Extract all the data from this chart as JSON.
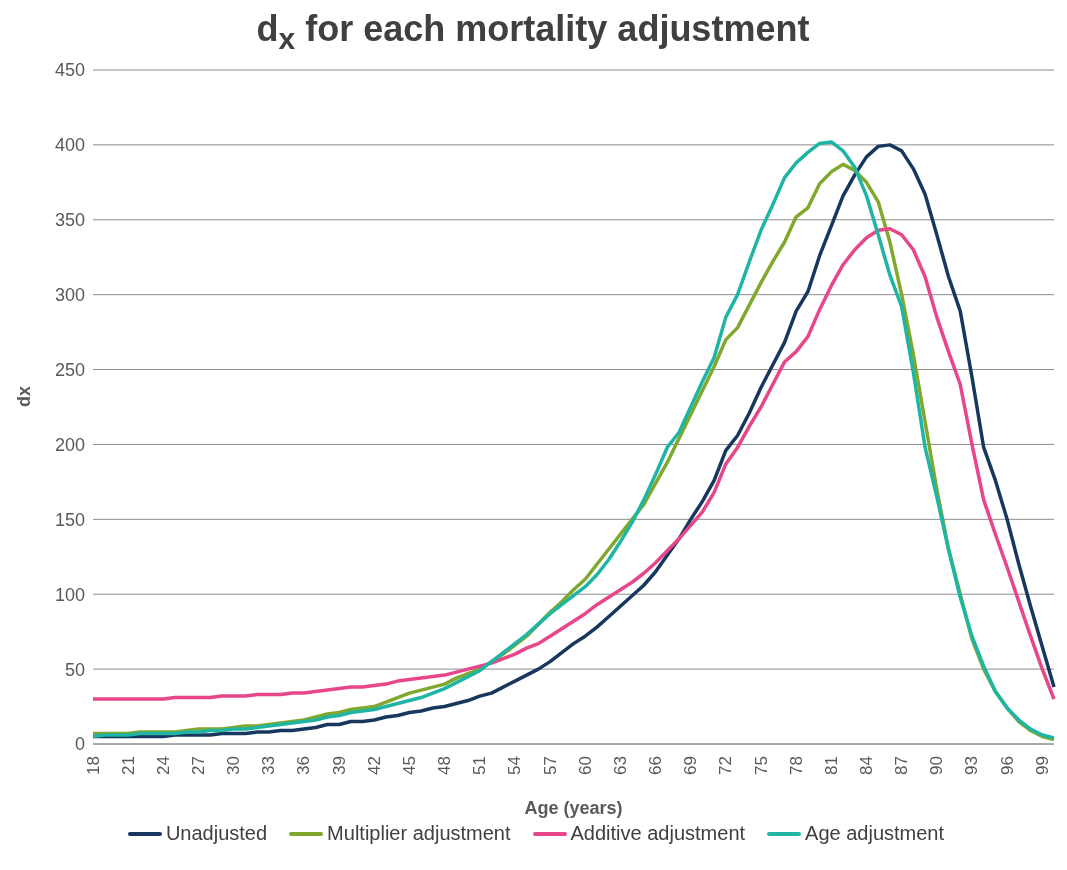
{
  "chart_data": {
    "type": "line",
    "title": "d$_{x}$ for each mortality adjustment",
    "xlabel": "Age (years)",
    "ylabel": "dx",
    "categories": [
      "18",
      null,
      null,
      "21",
      null,
      null,
      "24",
      null,
      null,
      "27",
      null,
      null,
      "30",
      null,
      null,
      "33",
      null,
      null,
      "36",
      null,
      null,
      "39",
      null,
      null,
      "42",
      null,
      null,
      "45",
      null,
      null,
      "48",
      null,
      null,
      "51",
      null,
      null,
      "54",
      null,
      null,
      "57",
      null,
      null,
      "60",
      null,
      null,
      "63",
      null,
      null,
      "66",
      null,
      null,
      "69",
      null,
      null,
      "72",
      null,
      null,
      "75",
      null,
      null,
      "78",
      null,
      null,
      "81",
      null,
      null,
      "84",
      null,
      null,
      "87",
      null,
      null,
      "90",
      null,
      null,
      "93",
      null,
      null,
      "96",
      null,
      null,
      "99",
      null
    ],
    "series": [
      {
        "name": "Unadjusted",
        "color": "#17375e",
        "values": [
          5,
          5,
          5,
          5,
          5,
          5,
          5,
          6,
          6,
          6,
          6,
          7,
          7,
          7,
          8,
          8,
          9,
          9,
          10,
          11,
          13,
          13,
          15,
          15,
          16,
          18,
          19,
          21,
          22,
          24,
          25,
          27,
          29,
          32,
          34,
          38,
          42,
          46,
          50,
          55,
          61,
          67,
          72,
          78,
          85,
          92,
          99,
          106,
          115,
          126,
          137,
          150,
          162,
          176,
          196,
          206,
          221,
          238,
          253,
          268,
          289,
          302,
          326,
          346,
          366,
          380,
          392,
          399,
          400,
          396,
          384,
          367,
          340,
          312,
          289,
          245,
          198,
          176,
          150,
          120,
          92,
          65,
          38
        ]
      },
      {
        "name": "Multiplier adjustment",
        "color": "#7fa82c",
        "values": [
          7,
          7,
          7,
          7,
          8,
          8,
          8,
          8,
          9,
          10,
          10,
          10,
          11,
          12,
          12,
          13,
          14,
          15,
          16,
          18,
          20,
          21,
          23,
          24,
          25,
          28,
          31,
          34,
          36,
          38,
          40,
          44,
          47,
          50,
          55,
          60,
          66,
          72,
          80,
          88,
          95,
          103,
          110,
          120,
          130,
          140,
          150,
          160,
          174,
          188,
          204,
          220,
          236,
          252,
          270,
          278,
          293,
          308,
          322,
          335,
          352,
          358,
          374,
          382,
          387,
          383,
          375,
          362,
          335,
          300,
          260,
          215,
          170,
          130,
          100,
          70,
          50,
          35,
          24,
          15,
          9,
          5,
          3
        ]
      },
      {
        "name": "Additive adjustment",
        "color": "#e8468a",
        "values": [
          30,
          30,
          30,
          30,
          30,
          30,
          30,
          31,
          31,
          31,
          31,
          32,
          32,
          32,
          33,
          33,
          33,
          34,
          34,
          35,
          36,
          37,
          38,
          38,
          39,
          40,
          42,
          43,
          44,
          45,
          46,
          48,
          50,
          52,
          54,
          57,
          60,
          64,
          67,
          72,
          77,
          82,
          87,
          93,
          98,
          103,
          108,
          114,
          121,
          129,
          137,
          146,
          155,
          168,
          187,
          198,
          212,
          225,
          240,
          255,
          262,
          272,
          290,
          306,
          320,
          330,
          338,
          343,
          344,
          340,
          330,
          312,
          285,
          262,
          240,
          200,
          163,
          140,
          118,
          95,
          72,
          50,
          30
        ]
      },
      {
        "name": "Age adjustment",
        "color": "#1fb5a5",
        "values": [
          5,
          6,
          6,
          6,
          7,
          7,
          7,
          7,
          8,
          8,
          9,
          9,
          10,
          10,
          11,
          12,
          13,
          14,
          15,
          16,
          18,
          19,
          21,
          22,
          23,
          25,
          27,
          29,
          31,
          34,
          37,
          41,
          45,
          49,
          55,
          61,
          67,
          73,
          80,
          87,
          93,
          99,
          105,
          113,
          123,
          135,
          148,
          163,
          180,
          198,
          208,
          225,
          242,
          258,
          285,
          300,
          322,
          343,
          360,
          378,
          388,
          395,
          401,
          402,
          396,
          385,
          366,
          340,
          313,
          292,
          248,
          198,
          165,
          130,
          98,
          72,
          52,
          35,
          24,
          16,
          10,
          6,
          4
        ]
      }
    ],
    "ylim": [
      0,
      450
    ],
    "yticks": [
      0,
      50,
      100,
      150,
      200,
      250,
      300,
      350,
      400,
      450
    ],
    "grid": "y",
    "legend": "bottom",
    "marker": "none",
    "line_style": "solid"
  }
}
